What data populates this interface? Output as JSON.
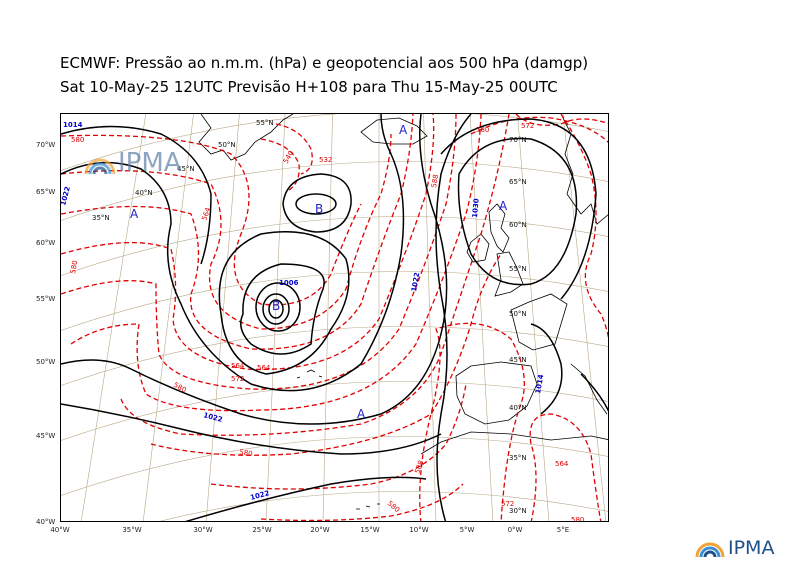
{
  "title": {
    "line1": "ECMWF:  Pressão ao n.m.m. (hPa) e geopotencial aos 500 hPa (damgp)",
    "line2": "Sat 10-May-25 12UTC Previsão H+108 para Thu 15-May-25 00UTC"
  },
  "logo": {
    "text": "IPMA"
  },
  "axes": {
    "lon_ticks": [
      "40°W",
      "35°W",
      "30°W",
      "25°W",
      "20°W",
      "15°W",
      "10°W",
      "5°W",
      "0°W",
      "5°E"
    ],
    "lat_ticks": [
      "70°W",
      "65°W",
      "60°W",
      "55°W",
      "50°W",
      "45°W",
      "40°W"
    ]
  },
  "grid_labels": [
    "55°N",
    "50°N",
    "45°N",
    "40°N",
    "35°N",
    "70°N",
    "65°N",
    "60°N",
    "55°N",
    "50°N",
    "45°N",
    "40°N",
    "35°N",
    "30°N"
  ],
  "pressure_centers": [
    {
      "letter": "A",
      "kind": "high"
    },
    {
      "letter": "B",
      "kind": "low"
    },
    {
      "letter": "B",
      "kind": "low"
    },
    {
      "letter": "A",
      "kind": "high"
    },
    {
      "letter": "A",
      "kind": "high"
    },
    {
      "letter": "A",
      "kind": "high"
    }
  ],
  "isobar_labels": [
    "1014",
    "1022",
    "1006",
    "1022",
    "1022",
    "1022",
    "1030",
    "1014"
  ],
  "geopotential_labels": [
    "580",
    "580",
    "564",
    "564",
    "540",
    "532",
    "564",
    "572",
    "580",
    "580",
    "588",
    "588",
    "580",
    "572",
    "572",
    "580",
    "580",
    "564"
  ],
  "colors": {
    "isobar": "#000000",
    "geopotential": "#e00000",
    "isobar_label": "#0000cc",
    "pressure_letter": "#2222cc",
    "graticule": "#b8a888",
    "coastline": "#000000"
  }
}
